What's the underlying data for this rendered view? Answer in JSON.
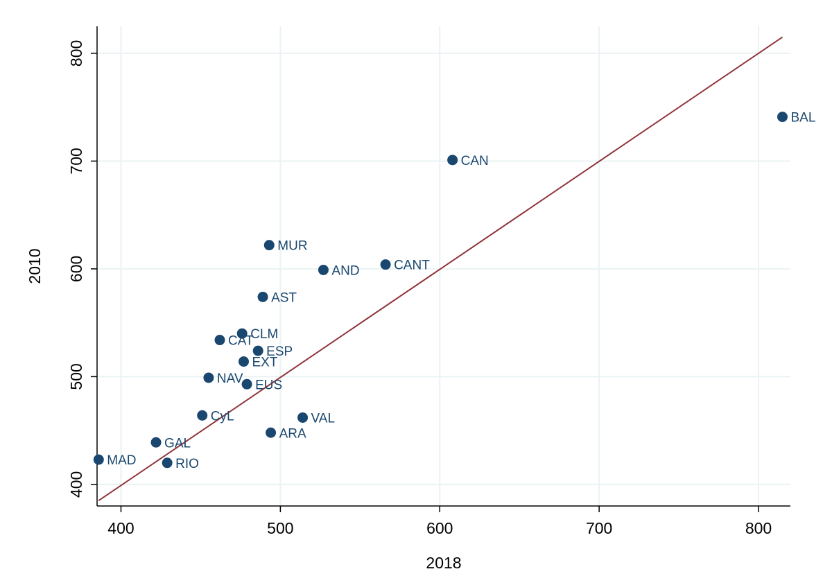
{
  "chart_data": {
    "type": "scatter",
    "title": "",
    "xlabel": "2018",
    "ylabel": "2010",
    "xlim": [
      385,
      820
    ],
    "ylim": [
      380,
      825
    ],
    "x_ticks": [
      400,
      500,
      600,
      700,
      800
    ],
    "y_ticks": [
      400,
      500,
      600,
      700,
      800
    ],
    "grid": true,
    "legend": "none",
    "colors": {
      "points": "#1a476f",
      "labels": "#1a476f",
      "fit_line": "#90353b",
      "grid": "#eaf2f3",
      "axis": "#000000"
    },
    "points": [
      {
        "label": "BAL",
        "x": 815,
        "y": 741
      },
      {
        "label": "CAN",
        "x": 608,
        "y": 701
      },
      {
        "label": "MUR",
        "x": 493,
        "y": 622
      },
      {
        "label": "CANT",
        "x": 566,
        "y": 604
      },
      {
        "label": "AND",
        "x": 527,
        "y": 599
      },
      {
        "label": "AST",
        "x": 489,
        "y": 574
      },
      {
        "label": "CLM",
        "x": 476,
        "y": 540
      },
      {
        "label": "CAT",
        "x": 462,
        "y": 534
      },
      {
        "label": "ESP",
        "x": 486,
        "y": 524
      },
      {
        "label": "EXT",
        "x": 477,
        "y": 514
      },
      {
        "label": "NAV",
        "x": 455,
        "y": 499
      },
      {
        "label": "EUS",
        "x": 479,
        "y": 493
      },
      {
        "label": "CyL",
        "x": 451,
        "y": 464
      },
      {
        "label": "VAL",
        "x": 514,
        "y": 462
      },
      {
        "label": "ARA",
        "x": 494,
        "y": 448
      },
      {
        "label": "GAL",
        "x": 422,
        "y": 439
      },
      {
        "label": "MAD",
        "x": 386,
        "y": 423
      },
      {
        "label": "RIO",
        "x": 429,
        "y": 420
      }
    ],
    "fit_line": {
      "x": [
        386,
        815
      ],
      "y": [
        385,
        815
      ]
    }
  }
}
